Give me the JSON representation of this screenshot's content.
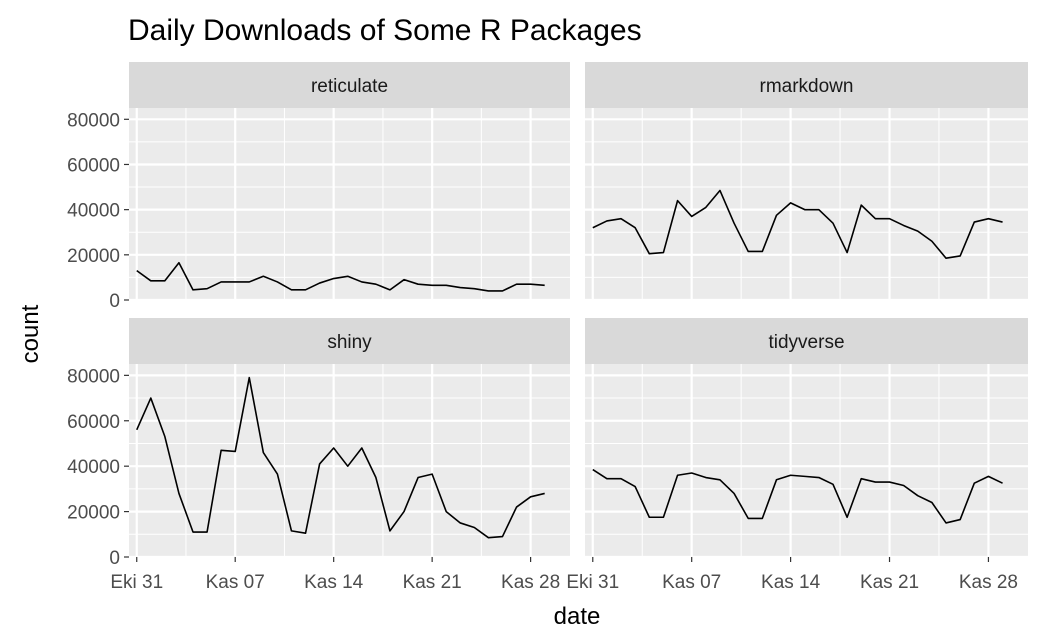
{
  "chart_data": {
    "type": "line",
    "title": "Daily Downloads of Some R Packages",
    "xlabel": "date",
    "ylabel": "count",
    "x_tick_labels": [
      "Eki 31",
      "Kas 07",
      "Kas 14",
      "Kas 21",
      "Kas 28"
    ],
    "y_tick_labels": [
      "0",
      "20000",
      "40000",
      "60000",
      "80000"
    ],
    "ylim": [
      0,
      85000
    ],
    "x_range_days": [
      -0.55,
      30.8
    ],
    "grid": true,
    "facets": [
      "reticulate",
      "rmarkdown",
      "shiny",
      "tidyverse"
    ],
    "series": [
      {
        "name": "reticulate",
        "values": [
          13000,
          8500,
          8500,
          16500,
          4500,
          5000,
          8000,
          8000,
          8000,
          10500,
          8000,
          4500,
          4500,
          7500,
          9500,
          10500,
          8000,
          7000,
          4500,
          9000,
          7000,
          6500,
          6500,
          5500,
          5000,
          4000,
          4000,
          7000,
          7000,
          6500
        ]
      },
      {
        "name": "rmarkdown",
        "values": [
          32000,
          35000,
          36000,
          32000,
          20500,
          21000,
          44000,
          37000,
          41000,
          48500,
          34000,
          21500,
          21500,
          37500,
          43000,
          40000,
          40000,
          34000,
          21000,
          42000,
          36000,
          36000,
          33000,
          30500,
          26000,
          18500,
          19500,
          34500,
          36000,
          34500
        ]
      },
      {
        "name": "shiny",
        "values": [
          56000,
          70000,
          53000,
          28000,
          11000,
          11000,
          47000,
          46500,
          79000,
          46000,
          36500,
          11500,
          10500,
          41000,
          48000,
          40000,
          48000,
          35000,
          11500,
          20000,
          35000,
          36500,
          20000,
          15000,
          13000,
          8500,
          9000,
          22000,
          26500,
          28000
        ]
      },
      {
        "name": "tidyverse",
        "values": [
          38500,
          34500,
          34500,
          31000,
          17500,
          17500,
          36000,
          37000,
          35000,
          34000,
          28000,
          17000,
          17000,
          34000,
          36000,
          35500,
          35000,
          32000,
          17500,
          34500,
          33000,
          33000,
          31500,
          27000,
          24000,
          15000,
          16500,
          32500,
          35500,
          32500
        ]
      }
    ]
  }
}
